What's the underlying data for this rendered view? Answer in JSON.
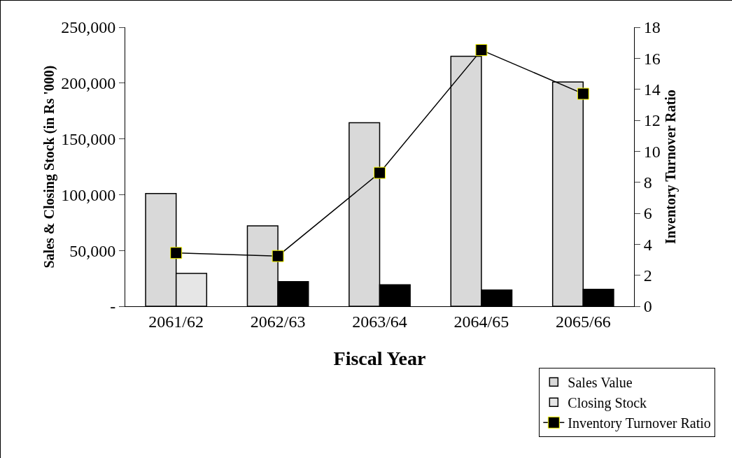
{
  "chart_data": {
    "type": "bar",
    "xlabel": "Fiscal Year",
    "ylabel": "Sales & Closing Stock (in Rs '000)",
    "y2label": "Inventory Turnover Ratio",
    "categories": [
      "2061/62",
      "2062/63",
      "2063/64",
      "2064/65",
      "2065/66"
    ],
    "series": [
      {
        "name": "Sales Value",
        "color": "#d9d9d9",
        "values": [
          101000,
          72000,
          164500,
          224000,
          201000
        ]
      },
      {
        "name": "Closing Stock",
        "colors": [
          "#e6e6e6",
          "#000000",
          "#000000",
          "#000000",
          "#000000"
        ],
        "values": [
          29400,
          22100,
          19200,
          14500,
          15200
        ]
      },
      {
        "name": "Inventory Turnover Ratio",
        "type": "line",
        "axis": "y2",
        "color": "#000000",
        "marker": "square",
        "values": [
          3.44,
          3.24,
          8.61,
          16.53,
          13.71
        ]
      }
    ],
    "ylim": [
      0,
      250000
    ],
    "yticks": [
      {
        "value": 0,
        "label": "-"
      },
      {
        "value": 50000,
        "label": "50,000"
      },
      {
        "value": 100000,
        "label": "100,000"
      },
      {
        "value": 150000,
        "label": "150,000"
      },
      {
        "value": 200000,
        "label": "200,000"
      },
      {
        "value": 250000,
        "label": "250,000"
      }
    ],
    "y2lim": [
      0,
      18
    ],
    "y2ticks": [
      0,
      2,
      4,
      6,
      8,
      10,
      12,
      14,
      16,
      18
    ],
    "grid": false,
    "legend": "bottom right"
  }
}
